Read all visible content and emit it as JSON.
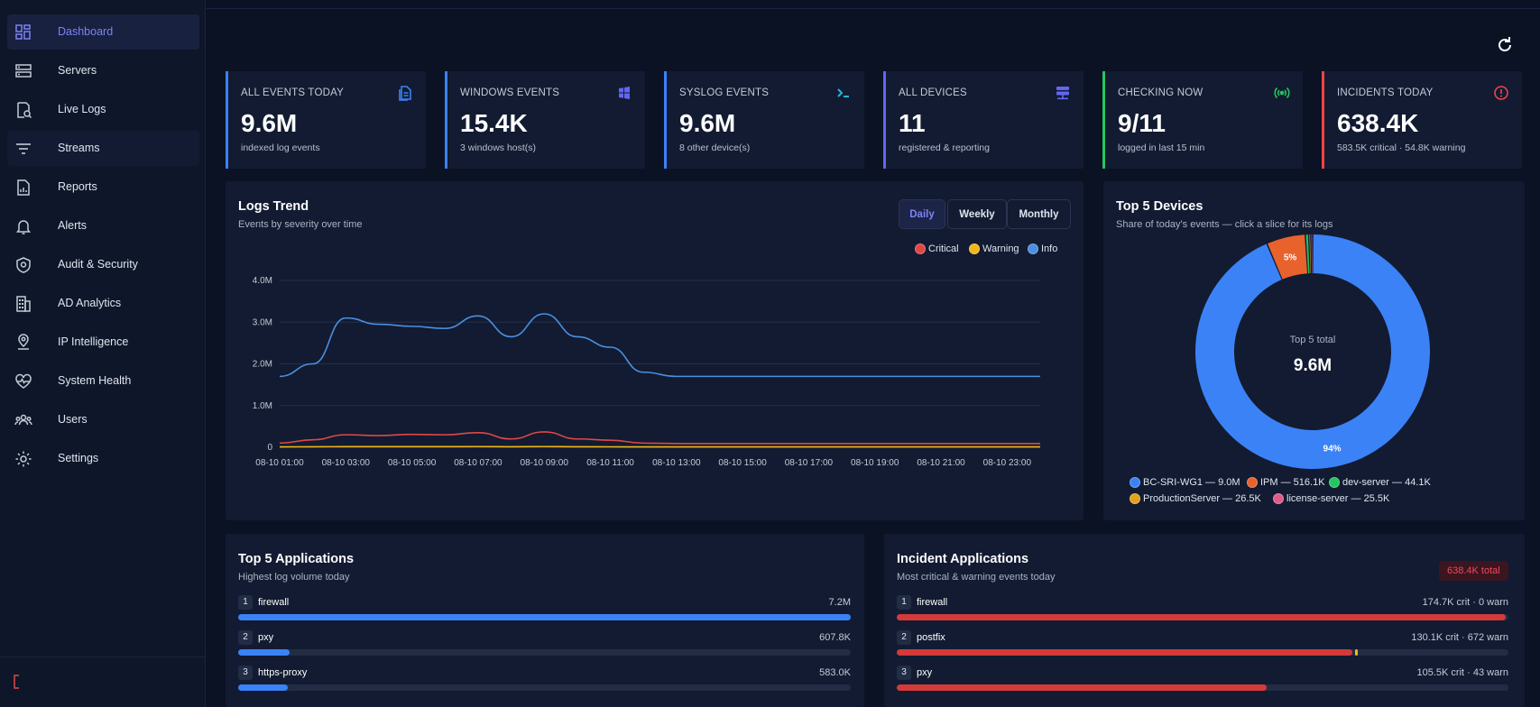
{
  "sidebar": {
    "items": [
      {
        "label": "Dashboard",
        "icon": "dashboard-icon"
      },
      {
        "label": "Servers",
        "icon": "servers-icon"
      },
      {
        "label": "Live Logs",
        "icon": "live-logs-icon"
      },
      {
        "label": "Streams",
        "icon": "streams-icon"
      },
      {
        "label": "Reports",
        "icon": "reports-icon"
      },
      {
        "label": "Alerts",
        "icon": "bell-icon"
      },
      {
        "label": "Audit & Security",
        "icon": "shield-icon"
      },
      {
        "label": "AD Analytics",
        "icon": "building-icon"
      },
      {
        "label": "IP Intelligence",
        "icon": "location-pin-icon"
      },
      {
        "label": "System Health",
        "icon": "heart-pulse-icon"
      },
      {
        "label": "Users",
        "icon": "users-icon"
      },
      {
        "label": "Settings",
        "icon": "gear-icon"
      }
    ]
  },
  "cards": [
    {
      "title": "ALL EVENTS TODAY",
      "value": "9.6M",
      "sub": "indexed log events",
      "color": "#3b82f6",
      "icon": "document-icon"
    },
    {
      "title": "WINDOWS EVENTS",
      "value": "15.4K",
      "sub": "3 windows host(s)",
      "color": "#3b82f6",
      "icon": "windows-icon"
    },
    {
      "title": "SYSLOG EVENTS",
      "value": "9.6M",
      "sub": "8 other device(s)",
      "color": "#3b82f6",
      "icon": "terminal-icon"
    },
    {
      "title": "ALL DEVICES",
      "value": "11",
      "sub": "registered & reporting",
      "color": "#6366f1",
      "icon": "server-stack-icon"
    },
    {
      "title": "CHECKING NOW",
      "value": "9/11",
      "sub": "logged in last 15 min",
      "color": "#22c55e",
      "icon": "broadcast-icon"
    },
    {
      "title": "INCIDENTS TODAY",
      "value": "638.4K",
      "sub": "583.5K critical · 54.8K warning",
      "color": "#ef4444",
      "icon": "alert-circle-icon"
    }
  ],
  "trend": {
    "title": "Logs Trend",
    "subtitle": "Events by severity over time",
    "tabs": [
      "Daily",
      "Weekly",
      "Monthly"
    ],
    "active_tab": "Daily"
  },
  "devices": {
    "title": "Top 5 Devices",
    "subtitle": "Share of today's events — click a slice for its logs",
    "center_label": "Top 5 total",
    "center_value": "9.6M",
    "legend": [
      {
        "label": "BC-SRI-WG1 — 9.0M",
        "color": "#3b82f6"
      },
      {
        "label": "IPM — 516.1K",
        "color": "#e8622c"
      },
      {
        "label": "dev-server — 44.1K",
        "color": "#22c55e"
      },
      {
        "label": "ProductionServer — 26.5K",
        "color": "#e0a21b"
      },
      {
        "label": "license-server — 25.5K",
        "color": "#e05a8a"
      }
    ]
  },
  "apps": {
    "title": "Top 5 Applications",
    "subtitle": "Highest log volume today",
    "rows": [
      {
        "rank": "1",
        "name": "firewall",
        "value": "7.2M",
        "fraction": 1.0
      },
      {
        "rank": "2",
        "name": "pxy",
        "value": "607.8K",
        "fraction": 0.084
      },
      {
        "rank": "3",
        "name": "https-proxy",
        "value": "583.0K",
        "fraction": 0.081
      }
    ]
  },
  "incidents": {
    "title": "Incident Applications",
    "subtitle": "Most critical & warning events today",
    "badge": "638.4K total",
    "rows": [
      {
        "rank": "1",
        "name": "firewall",
        "value": "174.7K crit · 0 warn",
        "crit": 0.996,
        "warn": 0.0
      },
      {
        "rank": "2",
        "name": "postfix",
        "value": "130.1K crit · 672 warn",
        "crit": 0.745,
        "warn": 0.004
      },
      {
        "rank": "3",
        "name": "pxy",
        "value": "105.5K crit · 43 warn",
        "crit": 0.604,
        "warn": 0.0
      }
    ]
  },
  "chart_data": [
    {
      "type": "line",
      "title": "Logs Trend",
      "x": [
        "08-10 01:00",
        "08-10 02:00",
        "08-10 03:00",
        "08-10 04:00",
        "08-10 05:00",
        "08-10 06:00",
        "08-10 07:00",
        "08-10 08:00",
        "08-10 09:00",
        "08-10 10:00",
        "08-10 11:00",
        "08-10 12:00",
        "08-10 13:00",
        "08-10 14:00",
        "08-10 15:00",
        "08-10 16:00",
        "08-10 17:00",
        "08-10 18:00",
        "08-10 19:00",
        "08-10 20:00",
        "08-10 21:00",
        "08-10 22:00",
        "08-10 23:00",
        "08-10 24:00"
      ],
      "x_ticks": [
        "08-10 01:00",
        "08-10 03:00",
        "08-10 05:00",
        "08-10 07:00",
        "08-10 09:00",
        "08-10 11:00",
        "08-10 13:00",
        "08-10 15:00",
        "08-10 17:00",
        "08-10 19:00",
        "08-10 21:00",
        "08-10 23:00"
      ],
      "y_ticks": [
        "0",
        "1.0M",
        "2.0M",
        "3.0M",
        "4.0M"
      ],
      "ylim": [
        0,
        4000000
      ],
      "series": [
        {
          "name": "Critical",
          "color": "#e04848",
          "values": [
            100000,
            180000,
            300000,
            280000,
            310000,
            300000,
            350000,
            200000,
            370000,
            200000,
            170000,
            100000,
            90000,
            90000,
            90000,
            90000,
            90000,
            90000,
            90000,
            90000,
            90000,
            90000,
            90000,
            90000
          ]
        },
        {
          "name": "Warning",
          "color": "#f2b619",
          "values": [
            10000,
            12000,
            15000,
            14000,
            15000,
            15000,
            16000,
            12000,
            16000,
            12000,
            11000,
            10000,
            10000,
            10000,
            10000,
            10000,
            10000,
            10000,
            10000,
            10000,
            10000,
            10000,
            10000,
            10000
          ]
        },
        {
          "name": "Info",
          "color": "#4a8fe0",
          "values": [
            1700000,
            2000000,
            3100000,
            2950000,
            2900000,
            2850000,
            3150000,
            2650000,
            3200000,
            2650000,
            2400000,
            1800000,
            1700000,
            1700000,
            1700000,
            1700000,
            1700000,
            1700000,
            1700000,
            1700000,
            1700000,
            1700000,
            1700000,
            1700000
          ]
        }
      ]
    },
    {
      "type": "pie",
      "title": "Top 5 Devices",
      "categories": [
        "BC-SRI-WG1",
        "IPM",
        "dev-server",
        "ProductionServer",
        "license-server"
      ],
      "values": [
        9000000,
        516100,
        44100,
        26500,
        25500
      ],
      "colors": [
        "#3b82f6",
        "#e8622c",
        "#22c55e",
        "#e0a21b",
        "#e05a8a"
      ],
      "slice_labels": [
        "94%",
        "5%",
        "",
        "",
        ""
      ]
    }
  ]
}
